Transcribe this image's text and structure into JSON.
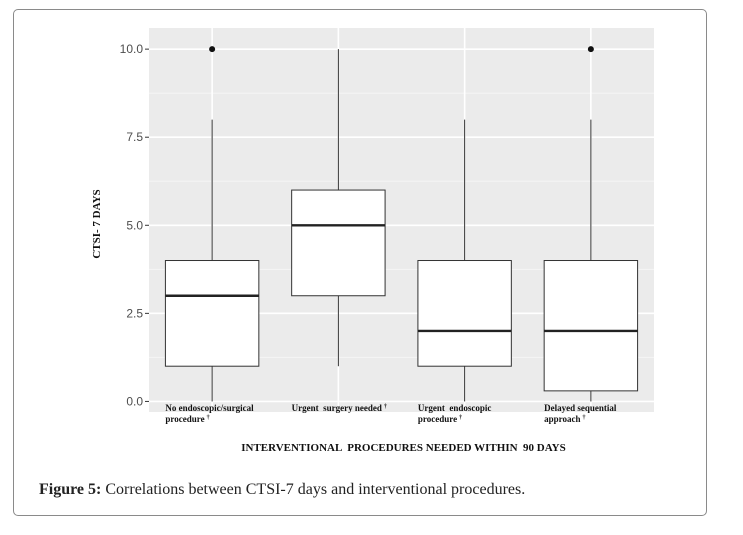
{
  "chart_data": {
    "type": "boxplot",
    "ylabel": "CTSI- 7 DAYS",
    "xlabel": "INTERVENTIONAL  PROCEDURES NEEDED WITHIN  90 DAYS",
    "ylim": [
      -0.3,
      10.6
    ],
    "yticks": [
      0.0,
      2.5,
      5.0,
      7.5,
      10.0
    ],
    "ytick_labels": [
      "0.0",
      "2.5",
      "5.0",
      "7.5",
      "10.0"
    ],
    "grid": true,
    "categories": [
      {
        "lines": [
          "No endoscopic/surgical",
          "procedure"
        ],
        "mark": "†"
      },
      {
        "lines": [
          "Urgent  surgery needed"
        ],
        "mark": "†"
      },
      {
        "lines": [
          "Urgent  endoscopic",
          "procedure"
        ],
        "mark": "†"
      },
      {
        "lines": [
          "Delayed sequential",
          "approach"
        ],
        "mark": "†"
      }
    ],
    "boxes": [
      {
        "whisker_low": 0.0,
        "q1": 1.0,
        "median": 3.0,
        "q3": 4.0,
        "whisker_high": 8.0,
        "outliers": [
          10.0
        ]
      },
      {
        "whisker_low": 1.0,
        "q1": 3.0,
        "median": 5.0,
        "q3": 6.0,
        "whisker_high": 10.0,
        "outliers": []
      },
      {
        "whisker_low": 0.0,
        "q1": 1.0,
        "median": 2.0,
        "q3": 4.0,
        "whisker_high": 8.0,
        "outliers": []
      },
      {
        "whisker_low": 0.0,
        "q1": 0.3,
        "median": 2.0,
        "q3": 4.0,
        "whisker_high": 8.0,
        "outliers": [
          10.0
        ]
      }
    ]
  },
  "caption": {
    "label": "Figure 5:",
    "text": " Correlations between CTSI-7 days and interventional procedures."
  }
}
